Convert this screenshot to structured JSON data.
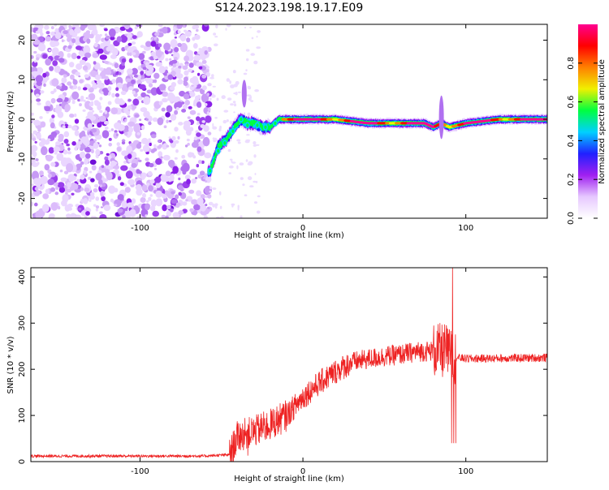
{
  "figure": {
    "title": "S124.2023.198.19.17.E09"
  },
  "chart_data": [
    {
      "type": "heatmap",
      "xlabel": "Height of straight line (km)",
      "ylabel": "Frequency (Hz)",
      "xlim": [
        -167,
        150
      ],
      "ylim": [
        -25,
        24
      ],
      "xticks": [
        -100,
        0,
        100
      ],
      "yticks": [
        -20,
        -10,
        0,
        10,
        20
      ],
      "colorbar": {
        "label": "Normalized spectral amplitude",
        "range": [
          0,
          1
        ],
        "ticks": [
          "0.0",
          "0.2",
          "0.4",
          "0.6",
          "0.8"
        ],
        "colormap": [
          "#ffffff",
          "#e6c8ff",
          "#a020f0",
          "#2020ff",
          "#00d0ff",
          "#00ff40",
          "#f0f000",
          "#ff8000",
          "#ff0000",
          "#ff0090"
        ]
      },
      "ridge": {
        "description_points_x": [
          -57,
          -52,
          -47,
          -42,
          -38,
          -34,
          -30,
          -25,
          -20,
          -15,
          -10,
          0,
          20,
          40,
          60,
          75,
          80,
          85,
          90,
          100,
          120,
          150
        ],
        "description_points_y": [
          -13,
          -7,
          -5,
          -2,
          0,
          -1,
          -1,
          -2,
          -2,
          0,
          0,
          0,
          0,
          -1,
          -1,
          -1,
          -2,
          -1,
          -2,
          -1,
          0,
          0
        ]
      }
    },
    {
      "type": "line",
      "xlabel": "Height of straight line (km)",
      "ylabel": "SNR (10 * v/v)",
      "xlim": [
        -167,
        150
      ],
      "ylim": [
        0,
        420
      ],
      "xticks": [
        -100,
        0,
        100
      ],
      "yticks": [
        0,
        100,
        200,
        300,
        400
      ],
      "series_color": "#ee2222",
      "trend": {
        "x": [
          -167,
          -60,
          -45,
          -40,
          -30,
          -20,
          -10,
          0,
          10,
          20,
          30,
          40,
          50,
          60,
          70,
          80,
          88,
          92,
          95,
          100,
          150
        ],
        "y": [
          12,
          12,
          15,
          55,
          65,
          80,
          100,
          140,
          170,
          195,
          215,
          222,
          228,
          232,
          238,
          240,
          240,
          230,
          225,
          223,
          225
        ]
      }
    }
  ]
}
